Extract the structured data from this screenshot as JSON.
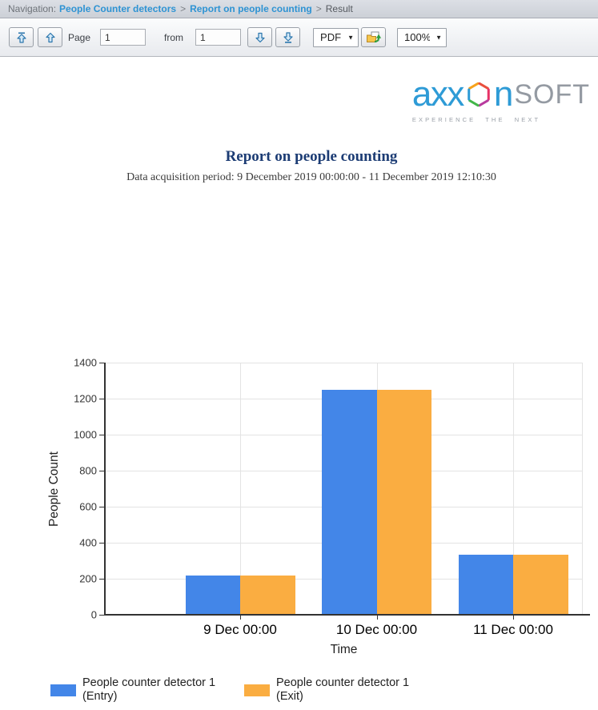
{
  "nav": {
    "prefix": "Navigation:",
    "separator": ">",
    "items": [
      {
        "label": "People Counter detectors",
        "type": "link"
      },
      {
        "label": "Report on people counting",
        "type": "link"
      },
      {
        "label": "Result",
        "type": "current"
      }
    ]
  },
  "toolbar": {
    "page_label": "Page",
    "page_value": "1",
    "from_label": "from",
    "total_pages_value": "1",
    "format_selected": "PDF",
    "zoom_selected": "100%",
    "icons": {
      "first_page": "arrow-up-to-line-icon",
      "prev_page": "arrow-up-icon",
      "next_page": "arrow-down-icon",
      "last_page": "arrow-down-to-line-icon",
      "export": "export-report-icon"
    }
  },
  "logo": {
    "word_axx": "axx",
    "word_n": "n",
    "word_soft": "SOFT",
    "tagline": "EXPERIENCE THE NEXT"
  },
  "report": {
    "title": "Report on people counting",
    "period": "Data acquisition period: 9 December 2019 00:00:00 - 11 December 2019 12:10:30"
  },
  "colors": {
    "link_blue": "#2E93D3",
    "title_navy": "#1C3C74",
    "logo_blue": "#2E9BD6",
    "entry_blue": "#4386E8",
    "exit_orange": "#FAAD41"
  },
  "chart_data": {
    "type": "bar",
    "categories": [
      "9 Dec 00:00",
      "10 Dec 00:00",
      "11 Dec 00:00"
    ],
    "series": [
      {
        "name": "People counter detector 1 (Entry)",
        "color": "#4386E8",
        "values": [
          220,
          1250,
          335
        ]
      },
      {
        "name": "People counter detector 1 (Exit)",
        "color": "#FAAD41",
        "values": [
          220,
          1250,
          335
        ]
      }
    ],
    "title": "",
    "xlabel": "Time",
    "ylabel": "People Count",
    "ylim": [
      0,
      1400
    ],
    "ytick_step": 200,
    "grid": true,
    "legend_position": "bottom"
  }
}
